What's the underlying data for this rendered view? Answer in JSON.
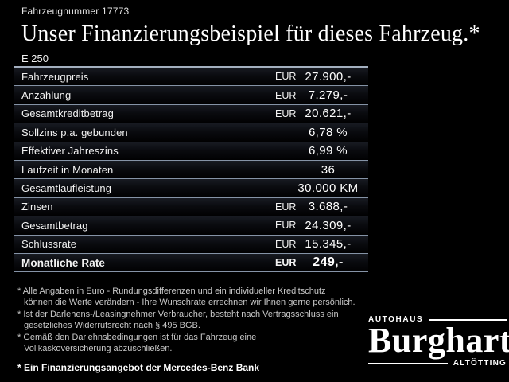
{
  "header": {
    "vehicle_number": "Fahrzeugnummer 17773",
    "title": "Unser Finanzierungsbeispiel für dieses Fahrzeug.*",
    "model": "E 250"
  },
  "table": {
    "rows": [
      {
        "label": "Fahrzeugpreis",
        "currency": "EUR",
        "value": "27.900,-",
        "bold": false
      },
      {
        "label": "Anzahlung",
        "currency": "EUR",
        "value": "7.279,-",
        "bold": false
      },
      {
        "label": "Gesamtkreditbetrag",
        "currency": "EUR",
        "value": "20.621,-",
        "bold": false
      },
      {
        "label": "Sollzins p.a. gebunden",
        "currency": "",
        "value": "6,78 %",
        "bold": false
      },
      {
        "label": "Effektiver Jahreszins",
        "currency": "",
        "value": "6,99 %",
        "bold": false
      },
      {
        "label": "Laufzeit in Monaten",
        "currency": "",
        "value": "36",
        "bold": false
      },
      {
        "label": "Gesamtlaufleistung",
        "currency": "",
        "value": "30.000 KM",
        "bold": false
      },
      {
        "label": "Zinsen",
        "currency": "EUR",
        "value": "3.688,-",
        "bold": false
      },
      {
        "label": "Gesamtbetrag",
        "currency": "EUR",
        "value": "24.309,-",
        "bold": false
      },
      {
        "label": "Schlussrate",
        "currency": "EUR",
        "value": "15.345,-",
        "bold": false
      },
      {
        "label": "Monatliche Rate",
        "currency": "EUR",
        "value": "249,-",
        "bold": true
      }
    ]
  },
  "footnotes": {
    "items": [
      {
        "text": "* Alle Angaben in Euro - Rundungsdifferenzen und ein individueller Kreditschutz\nkönnen die Werte verändern - Ihre Wunschrate errechnen wir Ihnen gerne persönlich."
      },
      {
        "text": "* Ist der Darlehens-/Leasingnehmer Verbraucher, besteht nach Vertragsschluss ein\ngesetzliches Widerrufsrecht nach § 495 BGB."
      },
      {
        "text": "* Gemäß den Darlehnsbedingungen ist für das Fahrzeug eine\nVollkaskoversicherung abzuschließen."
      }
    ],
    "bold_note": "* Ein Finanzierungsangebot der Mercedes-Benz Bank"
  },
  "logo": {
    "top": "AUTOHAUS",
    "name": "Burghart",
    "bottom": "ALTÖTTING"
  },
  "colors": {
    "background": "#000000",
    "text": "#ffffff",
    "footnote_text": "#c9c9c9",
    "separator": "#8593a6",
    "row_gradient_top": "#181b22"
  }
}
